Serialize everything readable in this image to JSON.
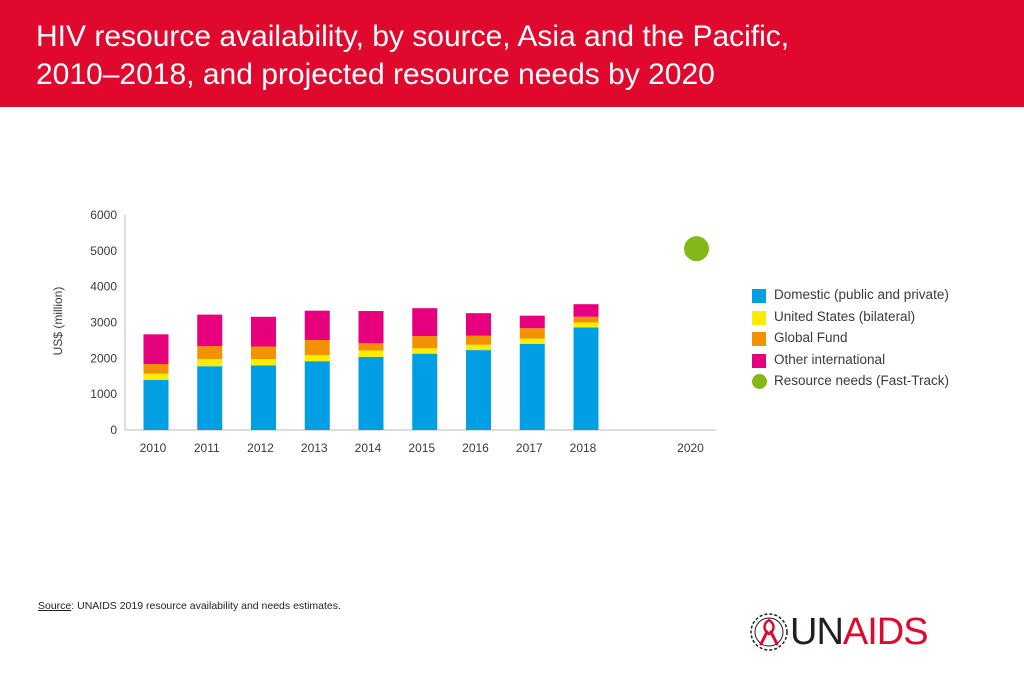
{
  "header": {
    "title_line1": "HIV resource availability, by source, Asia and the Pacific,",
    "title_line2": "2010–2018, and projected resource needs by 2020",
    "color": "#e0082d"
  },
  "source": {
    "label": "Source",
    "text": ": UNAIDS 2019 resource availability and needs estimates."
  },
  "logo": {
    "part1": "UN",
    "part2": "AIDS",
    "emblem": "red-ribbon-wreath-icon"
  },
  "legend": [
    {
      "name": "Domestic (public and private)",
      "color": "#009fe3",
      "shape": "square"
    },
    {
      "name": "United States (bilateral)",
      "color": "#ffec00",
      "shape": "square"
    },
    {
      "name": "Global Fund",
      "color": "#f39200",
      "shape": "square"
    },
    {
      "name": "Other international",
      "color": "#e6007e",
      "shape": "square"
    },
    {
      "name": "Resource needs (Fast-Track)",
      "color": "#84b818",
      "shape": "circle"
    }
  ],
  "chart_data": {
    "type": "bar",
    "stacked": true,
    "title": "HIV resource availability, by source, Asia and the Pacific, 2010–2018, and projected resource needs by 2020",
    "ylabel": "US$ (million)",
    "xlabel": "",
    "ylim": [
      0,
      6000
    ],
    "yticks": [
      0,
      1000,
      2000,
      3000,
      4000,
      5000,
      6000
    ],
    "categories": [
      "2010",
      "2011",
      "2012",
      "2013",
      "2014",
      "2015",
      "2016",
      "2017",
      "2018",
      "2020"
    ],
    "series": [
      {
        "name": "Domestic (public and private)",
        "color": "#009fe3",
        "values": [
          1400,
          1780,
          1800,
          1920,
          2040,
          2130,
          2230,
          2400,
          2860,
          null
        ]
      },
      {
        "name": "United States (bilateral)",
        "color": "#ffec00",
        "values": [
          170,
          200,
          180,
          170,
          180,
          150,
          150,
          150,
          140,
          null
        ]
      },
      {
        "name": "Global Fund",
        "color": "#f39200",
        "values": [
          270,
          360,
          350,
          420,
          200,
          340,
          250,
          290,
          160,
          null
        ]
      },
      {
        "name": "Other international",
        "color": "#e6007e",
        "values": [
          830,
          880,
          830,
          820,
          900,
          780,
          630,
          350,
          350,
          null
        ]
      }
    ],
    "points": [
      {
        "name": "Resource needs (Fast-Track)",
        "color": "#84b818",
        "x": "2020",
        "y": 5060
      }
    ],
    "grid": false,
    "legend_position": "right"
  }
}
